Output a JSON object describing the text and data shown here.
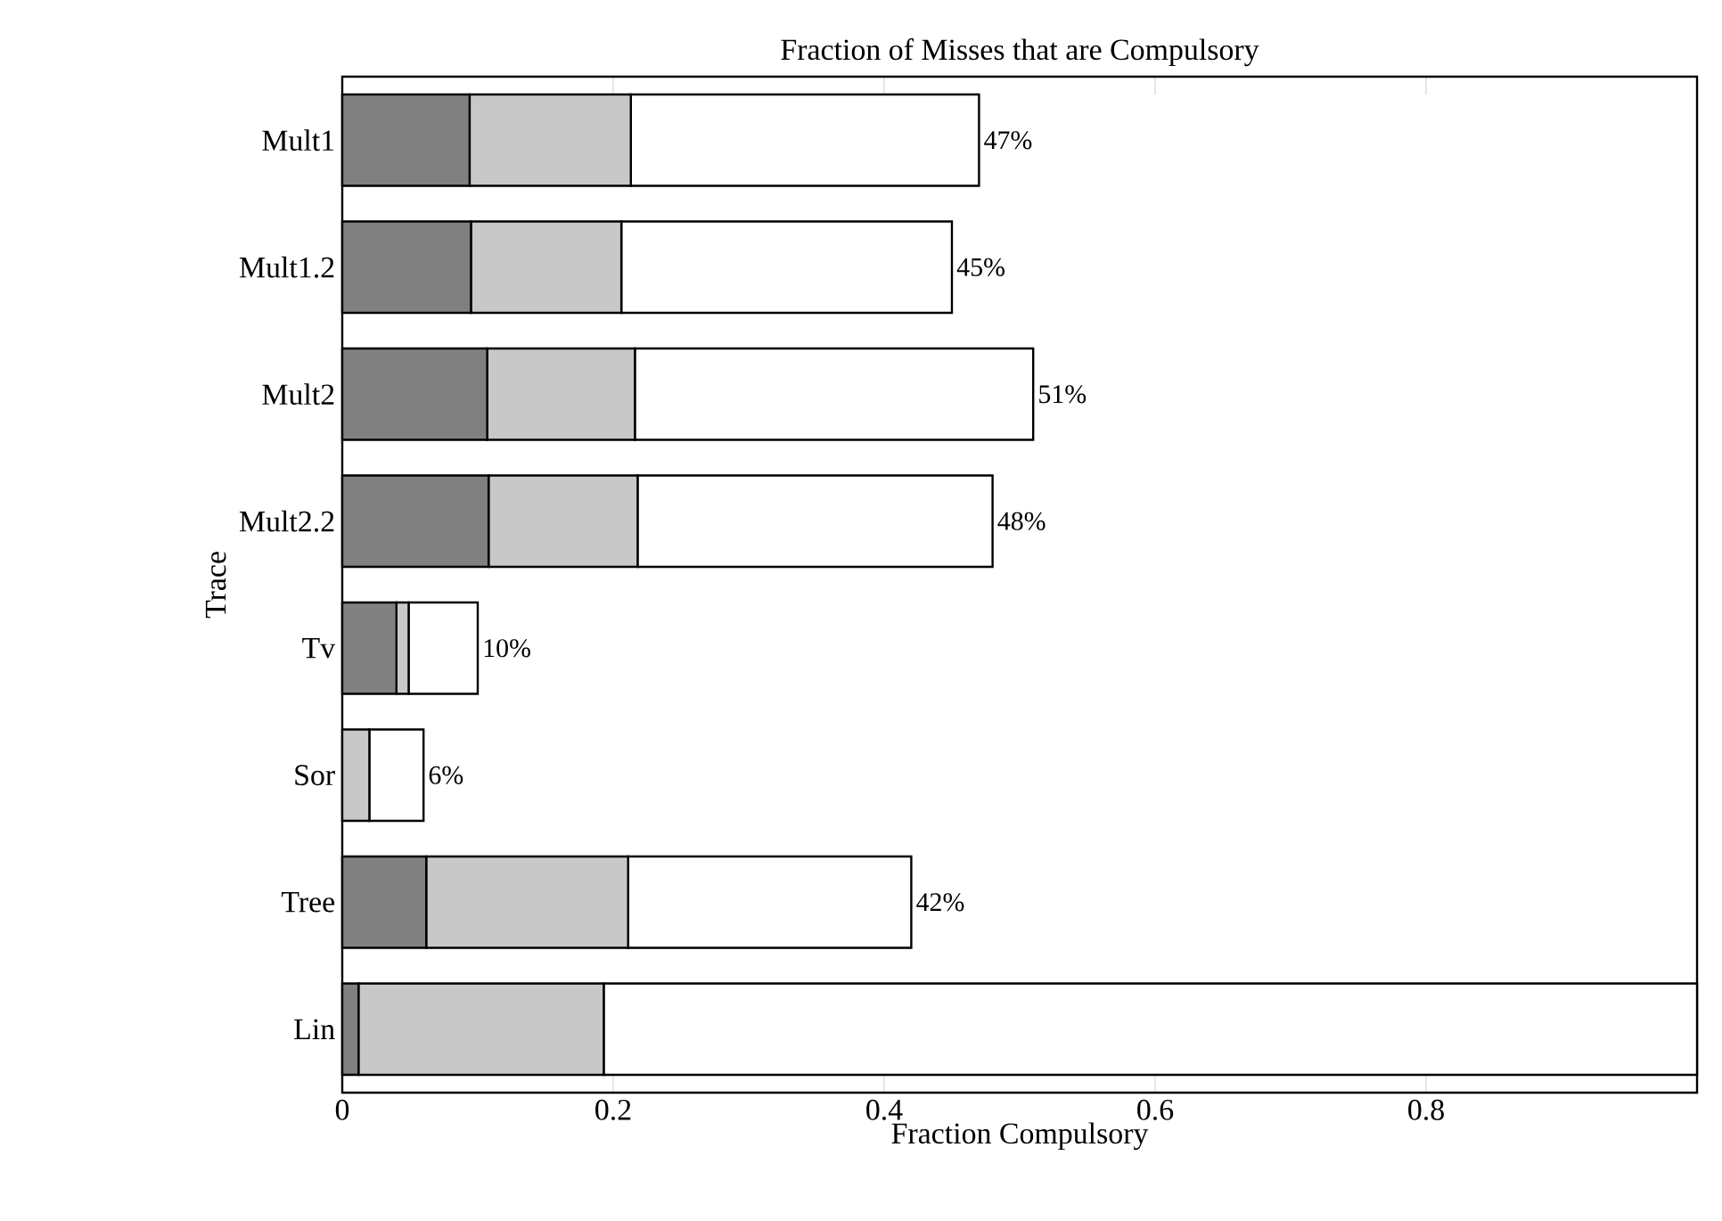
{
  "chart_data": {
    "type": "bar",
    "orientation": "horizontal",
    "stacked": true,
    "title": "Fraction of Misses that are Compulsory",
    "xlabel": "Fraction Compulsory",
    "ylabel": "Trace",
    "categories": [
      "Mult1",
      "Mult1.2",
      "Mult2",
      "Mult2.2",
      "Tv",
      "Sor",
      "Tree",
      "Lin"
    ],
    "series": [
      {
        "color": "#808080",
        "values": [
          0.094,
          0.095,
          0.107,
          0.108,
          0.04,
          0,
          0.062,
          0.012
        ]
      },
      {
        "color": "#c8c8c8",
        "values": [
          0.119,
          0.111,
          0.109,
          0.11,
          0.009,
          0.02,
          0.149,
          0.181
        ]
      },
      {
        "color": "#ffffff",
        "values": [
          0.257,
          0.244,
          0.294,
          0.262,
          0.051,
          0.04,
          0.209,
          0.807
        ]
      }
    ],
    "totals": [
      "47%",
      "45%",
      "51%",
      "48%",
      "10%",
      "6%",
      "42%",
      null
    ],
    "xlim": [
      0,
      1
    ],
    "xticks": [
      0,
      0.2,
      0.4,
      0.6,
      0.8
    ],
    "grid": false
  }
}
